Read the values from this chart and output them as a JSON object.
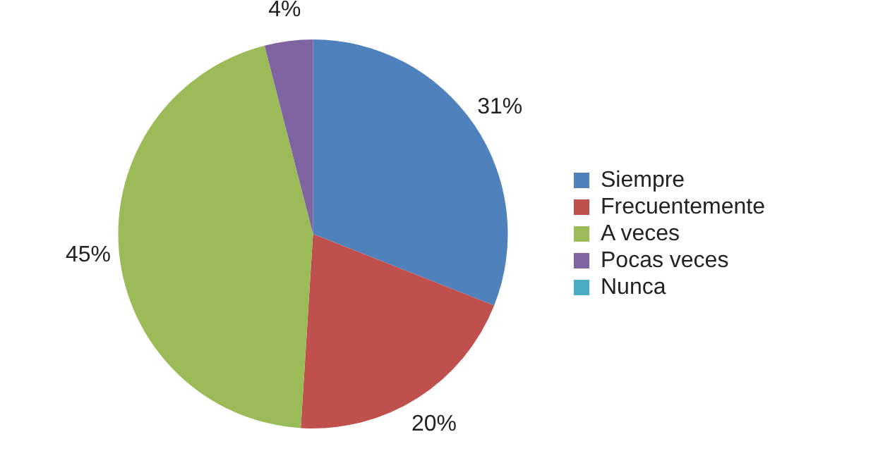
{
  "chart_data": {
    "type": "pie",
    "categories": [
      "Siempre",
      "Frecuentemente",
      "A veces",
      "Pocas veces",
      "Nunca"
    ],
    "values": [
      31,
      20,
      45,
      4,
      0
    ],
    "colors": [
      "#4f81bd",
      "#c0504d",
      "#9bbb59",
      "#8064a2",
      "#4bacc6"
    ],
    "value_labels": [
      "31%",
      "20%",
      "45%",
      "4%",
      null
    ],
    "legend": "right"
  }
}
